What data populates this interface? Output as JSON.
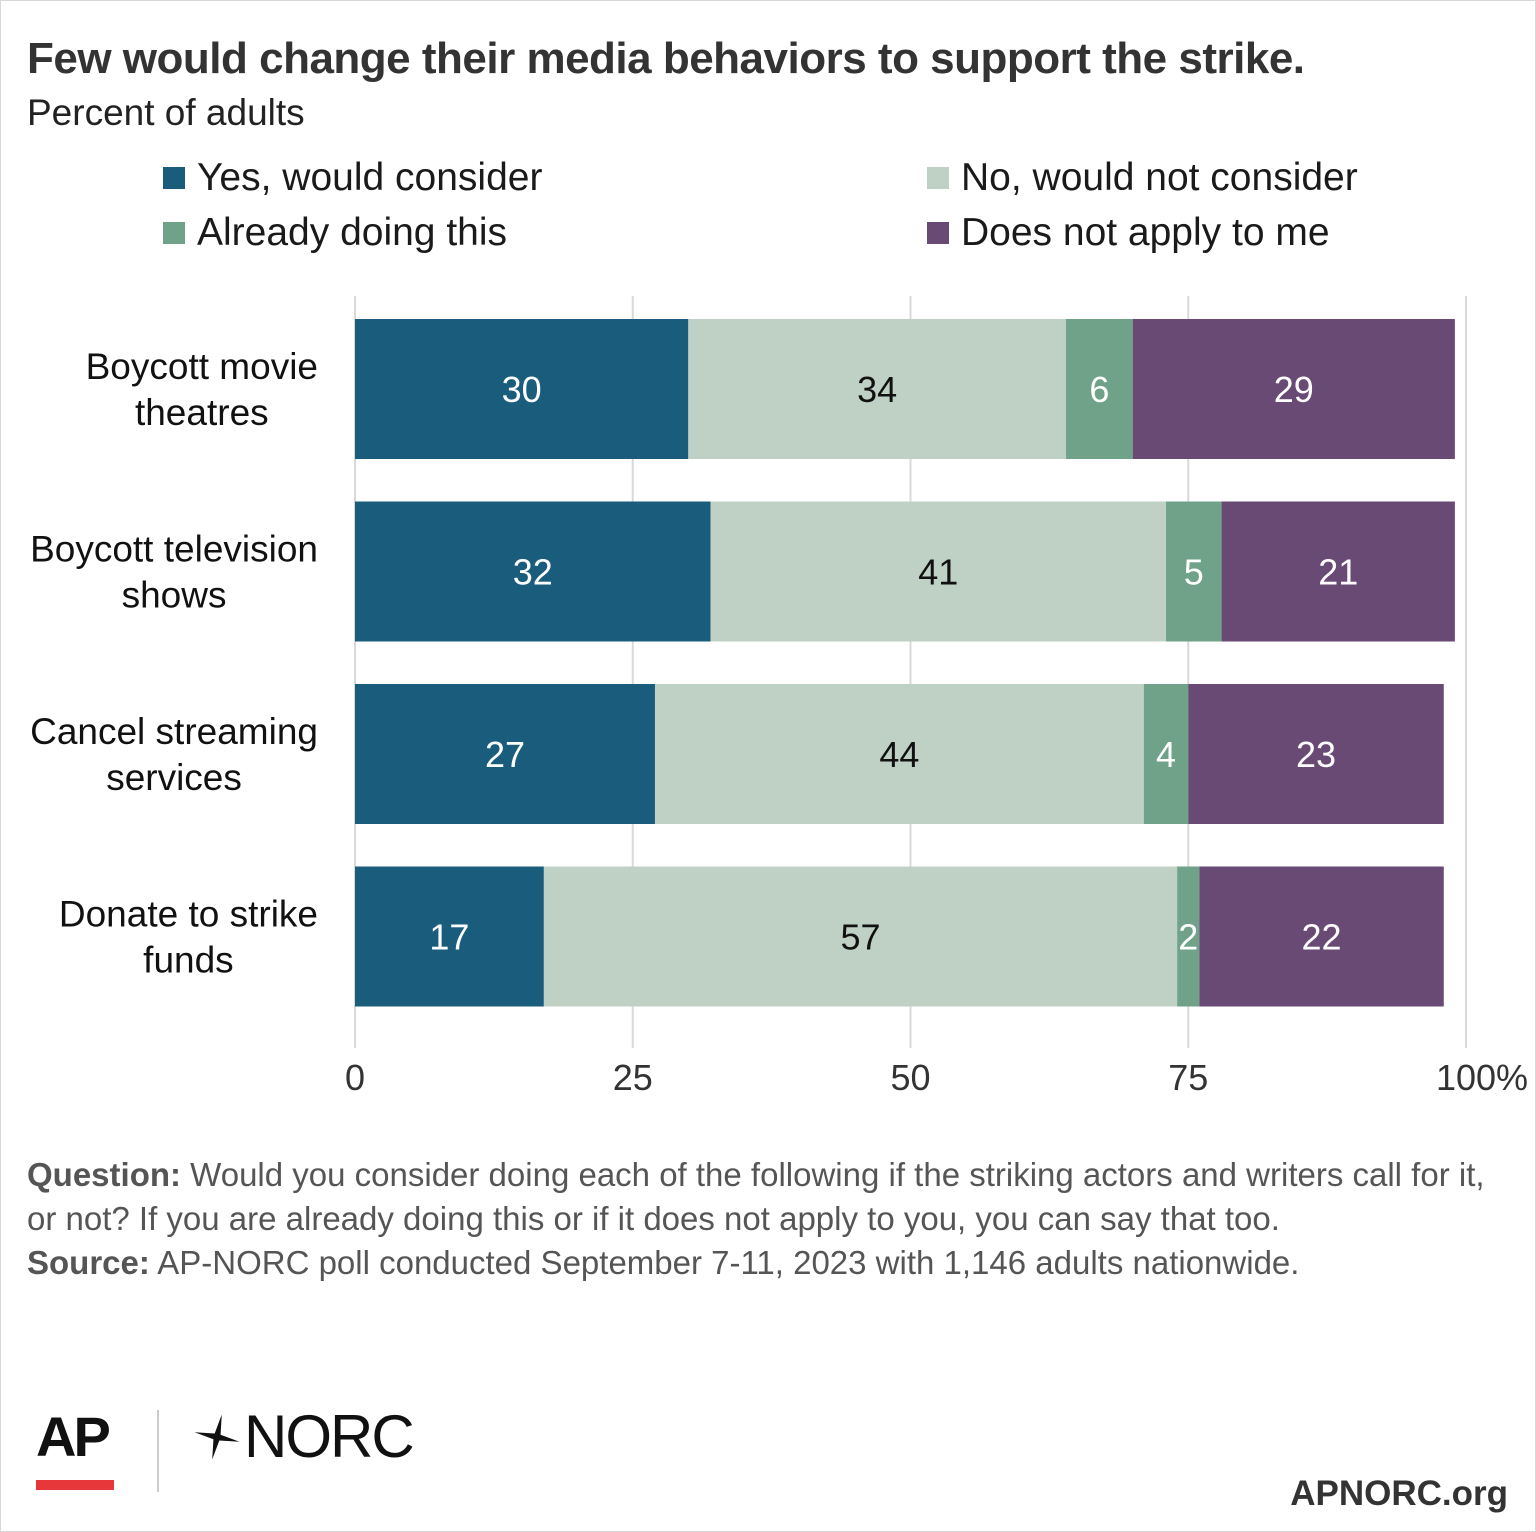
{
  "title": "Few would change their media behaviors to support the strike.",
  "subtitle": "Percent of adults",
  "legend": [
    {
      "label": "Yes, would consider",
      "color": "#1a5c7c"
    },
    {
      "label": "No, would not consider",
      "color": "#bfd0c4"
    },
    {
      "label": "Already doing this",
      "color": "#6fa289"
    },
    {
      "label": "Does not apply to me",
      "color": "#694a75"
    }
  ],
  "chart_data": {
    "type": "bar",
    "orientation": "horizontal",
    "stacked": true,
    "categories": [
      "Boycott movie theatres",
      "Boycott television shows",
      "Cancel streaming services",
      "Donate to strike funds"
    ],
    "series": [
      {
        "name": "Yes, would consider",
        "values": [
          30,
          32,
          27,
          17
        ],
        "color": "#1a5c7c",
        "label_color": "#ffffff"
      },
      {
        "name": "No, would not consider",
        "values": [
          34,
          41,
          44,
          57
        ],
        "color": "#bfd0c4",
        "label_color": "#111111"
      },
      {
        "name": "Already doing this",
        "values": [
          6,
          5,
          4,
          2
        ],
        "color": "#6fa289",
        "label_color": "#ffffff"
      },
      {
        "name": "Does not apply to me",
        "values": [
          29,
          21,
          23,
          22
        ],
        "color": "#694a75",
        "label_color": "#ffffff"
      }
    ],
    "x_ticks": [
      0,
      25,
      50,
      75,
      100
    ],
    "x_tick_labels": [
      "0",
      "25",
      "50",
      "75",
      "100%"
    ],
    "xlim": [
      0,
      100
    ],
    "grid": true,
    "legend_position": "top"
  },
  "notes": {
    "question_label": "Question:",
    "question_text": " Would you consider doing each of the following if the striking actors and writers call for it, or not? If you are already doing this or if it does not apply to you, you can say that too.",
    "source_label": "Source:",
    "source_text": " AP-NORC poll conducted September 7-11, 2023 with 1,146 adults nationwide."
  },
  "logos": {
    "ap": "AP",
    "ap_accent": "#e8373a",
    "norc": "NORC",
    "site": "APNORC.org"
  }
}
